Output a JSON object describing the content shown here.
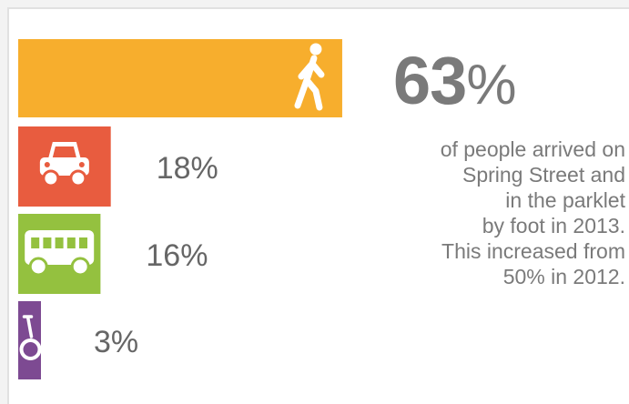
{
  "chart_data": {
    "type": "bar",
    "orientation": "horizontal",
    "categories": [
      "foot",
      "car",
      "bus",
      "bicycle"
    ],
    "values": [
      63,
      18,
      16,
      3
    ],
    "value_labels": [
      "",
      "18%",
      "16%",
      "3%"
    ],
    "colors": [
      "#f7ae2d",
      "#e85c3f",
      "#94c13f",
      "#7d4a92"
    ],
    "icons": [
      "walking-person-icon",
      "car-icon",
      "bus-icon",
      "bicycle-icon"
    ]
  },
  "headline": {
    "percent": "63",
    "sign": "%"
  },
  "note_lines": [
    "of people arrived on",
    "Spring Street and",
    "in the parklet",
    "by foot in 2013.",
    "This increased from",
    "50% in 2012."
  ]
}
